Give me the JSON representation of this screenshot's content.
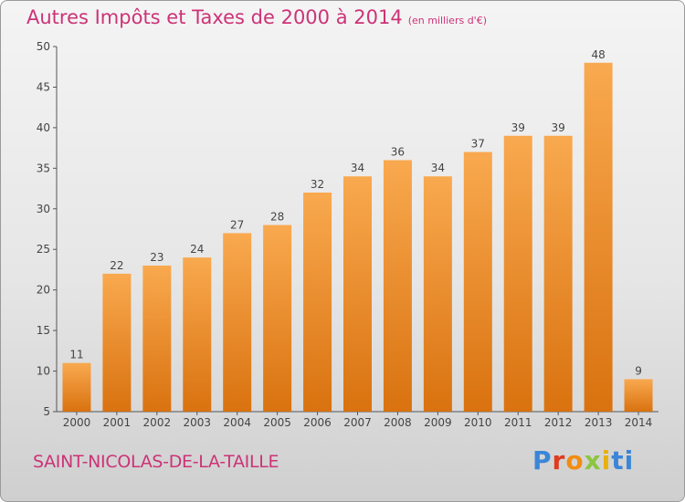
{
  "header": {
    "title": "Autres Impôts et Taxes de 2000 à 2014",
    "subtitle": "(en milliers d'€)"
  },
  "footer": {
    "commune": "SAINT-NICOLAS-DE-LA-TAILLE",
    "logo_letters": [
      "P",
      "r",
      "o",
      "x",
      "i",
      "t",
      "i"
    ]
  },
  "chart_data": {
    "type": "bar",
    "title": "Autres Impôts et Taxes de 2000 à 2014",
    "subtitle": "(en milliers d'€)",
    "xlabel": "",
    "ylabel": "",
    "categories": [
      "2000",
      "2001",
      "2002",
      "2003",
      "2004",
      "2005",
      "2006",
      "2007",
      "2008",
      "2009",
      "2010",
      "2011",
      "2012",
      "2013",
      "2014"
    ],
    "values": [
      11,
      22,
      23,
      24,
      27,
      28,
      32,
      34,
      36,
      34,
      37,
      39,
      39,
      48,
      9
    ],
    "ylim": [
      5,
      50
    ],
    "yticks": [
      5,
      10,
      15,
      20,
      25,
      30,
      35,
      40,
      45,
      50
    ],
    "grid": false,
    "legend": "none",
    "colors": {
      "bar_light": "#f9a94f",
      "bar_dark": "#d9720f",
      "text": "#444444",
      "title": "#cc3377",
      "axis": "#555555"
    }
  }
}
